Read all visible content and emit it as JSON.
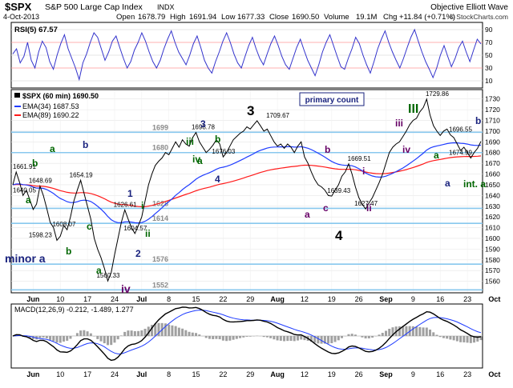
{
  "header": {
    "symbol": "$SPX",
    "name": "S&P 500 Large Cap Index",
    "exchange": "INDX",
    "brand": "Objective Elliott Wave",
    "date": "4-Oct-2013",
    "open_label": "Open",
    "open": "1678.79",
    "high_label": "High",
    "high": "1691.94",
    "low_label": "Low",
    "low": "1677.33",
    "close_label": "Close",
    "close": "1690.50",
    "volume_label": "Volume",
    "volume": "19.1M",
    "chg_label": "Chg",
    "chg": "+11.84 (+0.71%)",
    "copyright": "© StockCharts.com"
  },
  "rsi_panel": {
    "label": "RSI(5) 67.57",
    "ticks": [
      90,
      70,
      50,
      30,
      10
    ],
    "values": [
      52,
      60,
      38,
      48,
      70,
      42,
      30,
      55,
      72,
      62,
      40,
      28,
      50,
      68,
      82,
      60,
      45,
      30,
      12,
      38,
      52,
      70,
      85,
      78,
      60,
      42,
      55,
      72,
      80,
      62,
      45,
      30,
      40,
      58,
      70,
      85,
      72,
      55,
      40,
      30,
      42,
      60,
      75,
      88,
      70,
      55,
      45,
      35,
      50,
      68,
      80,
      62,
      42,
      30,
      22,
      40,
      55,
      72,
      85,
      70,
      52,
      38,
      30,
      48,
      65,
      78,
      60,
      45,
      35,
      52,
      68,
      80,
      65,
      48,
      35,
      28,
      45,
      62,
      75,
      58,
      42,
      30,
      18,
      35,
      55,
      70,
      82,
      65,
      48,
      32,
      28,
      45,
      60,
      78,
      68,
      50,
      35,
      22,
      40,
      60,
      75,
      88,
      70,
      55,
      42,
      30,
      45,
      62,
      78,
      90,
      72,
      55,
      40,
      28,
      15,
      30,
      50,
      65,
      48,
      32,
      45,
      62,
      72,
      55,
      40,
      58,
      75,
      67.57
    ]
  },
  "legend": {
    "price": "$SPX (60 min) 1690.50",
    "ema34": "EMA(34) 1687.53",
    "ema89": "EMA(89) 1690.22"
  },
  "primary_count_label": "primary count",
  "price_axis": {
    "ticks": [
      1560,
      1570,
      1580,
      1590,
      1600,
      1610,
      1620,
      1630,
      1640,
      1650,
      1660,
      1670,
      1680,
      1690,
      1700,
      1710,
      1720,
      1730
    ]
  },
  "levels": [
    {
      "value": 1699,
      "label": "1699"
    },
    {
      "value": 1680,
      "label": "1680"
    },
    {
      "value": 1628,
      "label": "1628"
    },
    {
      "value": 1614,
      "label": "1614"
    },
    {
      "value": 1576,
      "label": "1576"
    },
    {
      "value": 1552,
      "label": "1552"
    }
  ],
  "date_axis": {
    "labels": [
      {
        "i": 6,
        "label": "Jun"
      },
      {
        "i": 14,
        "label": "10"
      },
      {
        "i": 22,
        "label": "17"
      },
      {
        "i": 30,
        "label": "24"
      },
      {
        "i": 38,
        "label": "Jul"
      },
      {
        "i": 46,
        "label": "8"
      },
      {
        "i": 54,
        "label": "15"
      },
      {
        "i": 62,
        "label": "22"
      },
      {
        "i": 70,
        "label": "29"
      },
      {
        "i": 78,
        "label": "Aug"
      },
      {
        "i": 86,
        "label": "12"
      },
      {
        "i": 94,
        "label": "19"
      },
      {
        "i": 102,
        "label": "26"
      },
      {
        "i": 110,
        "label": "Sep"
      },
      {
        "i": 118,
        "label": "9"
      },
      {
        "i": 126,
        "label": "16"
      },
      {
        "i": 134,
        "label": "23"
      },
      {
        "i": 142,
        "label": "Oct"
      }
    ]
  },
  "price_annotations": [
    {
      "i": 0,
      "v": 1661.91,
      "text": "1661.91"
    },
    {
      "i": 0,
      "v": 1640.05,
      "text": "1640.05"
    },
    {
      "i": 8,
      "v": 1648.69,
      "text": "1648.69"
    },
    {
      "i": 8,
      "v": 1598.23,
      "text": "1598.23"
    },
    {
      "i": 15,
      "v": 1608.07,
      "text": "1608.07"
    },
    {
      "i": 20,
      "v": 1654.19,
      "text": "1654.19"
    },
    {
      "i": 33,
      "v": 1626.61,
      "text": "1626.61"
    },
    {
      "i": 36,
      "v": 1604.57,
      "text": "1604.57"
    },
    {
      "i": 28,
      "v": 1560.33,
      "text": "1560.33"
    },
    {
      "i": 56,
      "v": 1698.78,
      "text": "1698.78"
    },
    {
      "i": 62,
      "v": 1676.03,
      "text": "1676.03"
    },
    {
      "i": 78,
      "v": 1709.67,
      "text": "1709.67"
    },
    {
      "i": 102,
      "v": 1669.51,
      "text": "1669.51"
    },
    {
      "i": 96,
      "v": 1639.43,
      "text": "1639.43"
    },
    {
      "i": 104,
      "v": 1627.47,
      "text": "1627.47"
    },
    {
      "i": 125,
      "v": 1729.86,
      "text": "1729.86"
    },
    {
      "i": 134,
      "v": 1696.55,
      "text": "1696.55"
    },
    {
      "i": 132,
      "v": 1674.99,
      "text": "1674.99"
    }
  ],
  "wave_labels": [
    {
      "text": "a",
      "color": "#006600"
    },
    {
      "text": "b",
      "color": "#006600"
    },
    {
      "text": "a",
      "color": "#006600"
    },
    {
      "text": "b",
      "color": "#006600"
    },
    {
      "text": "b",
      "color": "#1a237e"
    },
    {
      "text": "c",
      "color": "#006600"
    },
    {
      "text": "a",
      "color": "#006600"
    },
    {
      "text": "minor a",
      "color": "#1a237e"
    },
    {
      "text": "iv",
      "color": "#660066"
    },
    {
      "text": "1",
      "color": "#1a237e"
    },
    {
      "text": "i",
      "color": "#006600"
    },
    {
      "text": "ii",
      "color": "#006600"
    },
    {
      "text": "2",
      "color": "#1a237e"
    },
    {
      "text": "iii",
      "color": "#006600"
    },
    {
      "text": "3",
      "color": "#1a237e"
    },
    {
      "text": "b",
      "color": "#006600"
    },
    {
      "text": "a",
      "color": "#006600"
    },
    {
      "text": "iv",
      "color": "#006600"
    },
    {
      "text": "4",
      "color": "#1a237e"
    },
    {
      "text": "3",
      "color": "#000000"
    },
    {
      "text": "b",
      "color": "#660066"
    },
    {
      "text": "a",
      "color": "#660066"
    },
    {
      "text": "c",
      "color": "#660066"
    },
    {
      "text": "4",
      "color": "#000000"
    },
    {
      "text": "i",
      "color": "#660066"
    },
    {
      "text": "ii",
      "color": "#660066"
    },
    {
      "text": "iii",
      "color": "#660066"
    },
    {
      "text": "iv",
      "color": "#660066"
    },
    {
      "text": "III",
      "color": "#006600"
    },
    {
      "text": "a",
      "color": "#006600"
    },
    {
      "text": "b",
      "color": "#1a237e"
    },
    {
      "text": "a",
      "color": "#1a237e"
    },
    {
      "text": "int. a",
      "color": "#006600"
    }
  ],
  "macd_panel": {
    "label": "MACD(12,26,9) -0.212, -1.489, 1.277"
  },
  "colors": {
    "price": "#000000",
    "ema34": "#1f3cff",
    "ema89": "#ff1a1a",
    "rsi": "#3333cc",
    "level_line": "#88c8ee",
    "macd_line": "#000000",
    "signal_line": "#1f3cff",
    "histogram": "#a0a0a0"
  },
  "chart_data": {
    "type": "line",
    "title": "$SPX S&P 500 Large Cap Index INDX",
    "x_unit": "60-minute bar index",
    "ylim": [
      1550,
      1738
    ],
    "ema_periods": [
      34,
      89
    ],
    "series": [
      {
        "name": "$SPX (60 min)",
        "values": [
          1650,
          1661.91,
          1652,
          1640.05,
          1645,
          1636,
          1627,
          1632,
          1648.69,
          1640,
          1628,
          1615,
          1610,
          1598.23,
          1602,
          1612,
          1608.07,
          1620,
          1635,
          1645,
          1654.19,
          1642,
          1630,
          1618,
          1600,
          1590,
          1582,
          1572,
          1560.33,
          1568,
          1585,
          1600,
          1615,
          1626.61,
          1618,
          1610,
          1604.57,
          1612,
          1620,
          1635,
          1650,
          1660,
          1668,
          1672,
          1675,
          1680,
          1678,
          1684,
          1690,
          1685,
          1692,
          1688,
          1686,
          1694,
          1698.78,
          1690,
          1685,
          1680,
          1683,
          1687,
          1692,
          1688,
          1676.03,
          1680,
          1686,
          1692,
          1695,
          1698,
          1700,
          1704,
          1702,
          1706,
          1709.67,
          1705,
          1700,
          1702,
          1696,
          1690,
          1686,
          1688,
          1684,
          1688,
          1685,
          1680,
          1686,
          1690,
          1676,
          1670,
          1662,
          1655,
          1650,
          1648,
          1645,
          1640,
          1639.43,
          1645,
          1650,
          1658,
          1662,
          1669.51,
          1660,
          1648,
          1638,
          1632,
          1627.47,
          1633,
          1638,
          1645,
          1652,
          1660,
          1670,
          1680,
          1685,
          1688,
          1690,
          1695,
          1700,
          1706,
          1710,
          1712,
          1718,
          1722,
          1729.86,
          1715,
          1705,
          1700,
          1696,
          1700,
          1702,
          1696.55,
          1694,
          1688,
          1682,
          1685,
          1680,
          1674.99,
          1680,
          1684,
          1690.5
        ]
      }
    ]
  }
}
